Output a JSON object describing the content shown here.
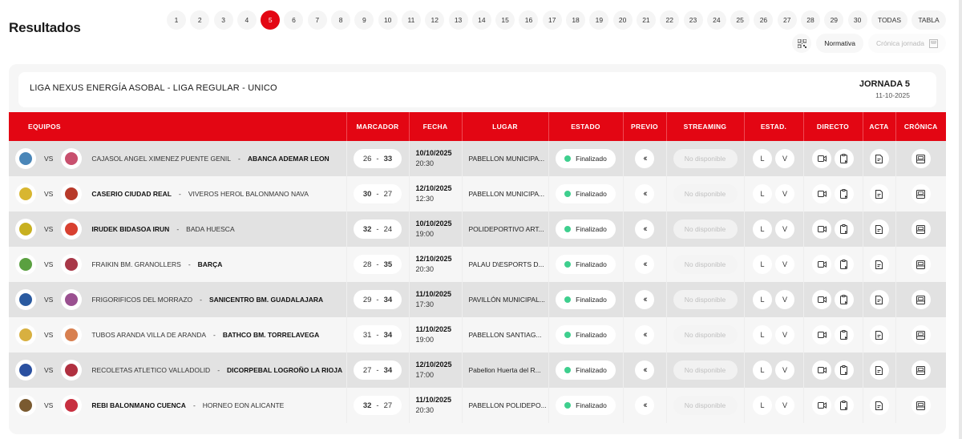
{
  "page": {
    "title": "Resultados"
  },
  "rounds": {
    "items": [
      "1",
      "2",
      "3",
      "4",
      "5",
      "6",
      "7",
      "8",
      "9",
      "10",
      "11",
      "12",
      "13",
      "14",
      "15",
      "16",
      "17",
      "18",
      "19",
      "20",
      "21",
      "22",
      "23",
      "24",
      "25",
      "26",
      "27",
      "28",
      "29",
      "30"
    ],
    "active": "5",
    "todas_label": "TODAS",
    "tabla_label": "TABLA"
  },
  "aux": {
    "qr_icon": "qr-code-icon",
    "normativa_label": "Normativa",
    "cronica_jornada_label": "Crónica jornada",
    "cronica_icon": "newspaper-icon"
  },
  "league": {
    "name": "LIGA NEXUS ENERGÍA ASOBAL - LIGA REGULAR - UNICO",
    "jornada": "JORNADA 5",
    "date": "11-10-2025"
  },
  "colors": {
    "accent": "#e30613",
    "status_green": "#3ecf8e"
  },
  "table": {
    "headers": {
      "equipos": "EQUIPOS",
      "marcador": "MARCADOR",
      "fecha": "FECHA",
      "lugar": "LUGAR",
      "estado": "ESTADO",
      "previo": "PREVIO",
      "streaming": "STREAMING",
      "estad": "ESTAD.",
      "directo": "DIRECTO",
      "acta": "ACTA",
      "cronica": "CRÓNICA"
    },
    "vs_label": "VS",
    "sep_label": "-",
    "rows": [
      {
        "home": "CAJASOL ANGEL XIMENEZ PUENTE GENIL",
        "away": "ABANCA ADEMAR LEON",
        "home_score": "26",
        "away_score": "33",
        "winner": "away",
        "date": "10/10/2025",
        "time": "20:30",
        "venue": "PABELLON MUNICIPA...",
        "status": "Finalizado",
        "streaming": "No disponible",
        "stat_l": "L",
        "stat_v": "V",
        "home_color": "#4a86b8",
        "away_color": "#c8506e"
      },
      {
        "home": "CASERIO CIUDAD REAL",
        "away": "VIVEROS HEROL BALONMANO NAVA",
        "home_score": "30",
        "away_score": "27",
        "winner": "home",
        "date": "12/10/2025",
        "time": "12:30",
        "venue": "PABELLON MUNICIPA...",
        "status": "Finalizado",
        "streaming": "No disponible",
        "stat_l": "L",
        "stat_v": "V",
        "home_color": "#d8b630",
        "away_color": "#b83a2a"
      },
      {
        "home": "IRUDEK BIDASOA IRUN",
        "away": "BADA HUESCA",
        "home_score": "32",
        "away_score": "24",
        "winner": "home",
        "date": "10/10/2025",
        "time": "19:00",
        "venue": "POLIDEPORTIVO ART...",
        "status": "Finalizado",
        "streaming": "No disponible",
        "stat_l": "L",
        "stat_v": "V",
        "home_color": "#c8b020",
        "away_color": "#d84030"
      },
      {
        "home": "FRAIKIN BM. GRANOLLERS",
        "away": "BARÇA",
        "home_score": "28",
        "away_score": "35",
        "winner": "away",
        "date": "12/10/2025",
        "time": "20:30",
        "venue": "PALAU D\\ESPORTS D...",
        "status": "Finalizado",
        "streaming": "No disponible",
        "stat_l": "L",
        "stat_v": "V",
        "home_color": "#5aa040",
        "away_color": "#a83848"
      },
      {
        "home": "FRIGORIFICOS DEL MORRAZO",
        "away": "SANICENTRO BM. GUADALAJARA",
        "home_score": "29",
        "away_score": "34",
        "winner": "away",
        "date": "11/10/2025",
        "time": "17:30",
        "venue": "PAVILLÓN MUNICIPAL...",
        "status": "Finalizado",
        "streaming": "No disponible",
        "stat_l": "L",
        "stat_v": "V",
        "home_color": "#2a5aa0",
        "away_color": "#9a5090"
      },
      {
        "home": "TUBOS ARANDA VILLA DE ARANDA",
        "away": "BATHCO BM. TORRELAVEGA",
        "home_score": "31",
        "away_score": "34",
        "winner": "away",
        "date": "11/10/2025",
        "time": "19:00",
        "venue": "PABELLON SANTIAG...",
        "status": "Finalizado",
        "streaming": "No disponible",
        "stat_l": "L",
        "stat_v": "V",
        "home_color": "#d8b040",
        "away_color": "#d88050"
      },
      {
        "home": "RECOLETAS ATLETICO VALLADOLID",
        "away": "DICORPEBAL LOGROÑO LA RIOJA",
        "home_score": "27",
        "away_score": "34",
        "winner": "away",
        "date": "12/10/2025",
        "time": "17:00",
        "venue": "Pabellon Huerta del R...",
        "status": "Finalizado",
        "streaming": "No disponible",
        "stat_l": "L",
        "stat_v": "V",
        "home_color": "#2a50a0",
        "away_color": "#b03040"
      },
      {
        "home": "REBI BALONMANO CUENCA",
        "away": "HORNEO EON ALICANTE",
        "home_score": "32",
        "away_score": "27",
        "winner": "home",
        "date": "11/10/2025",
        "time": "20:30",
        "venue": "PABELLON POLIDEPO...",
        "status": "Finalizado",
        "streaming": "No disponible",
        "stat_l": "L",
        "stat_v": "V",
        "home_color": "#7a5a30",
        "away_color": "#c83040"
      }
    ]
  }
}
